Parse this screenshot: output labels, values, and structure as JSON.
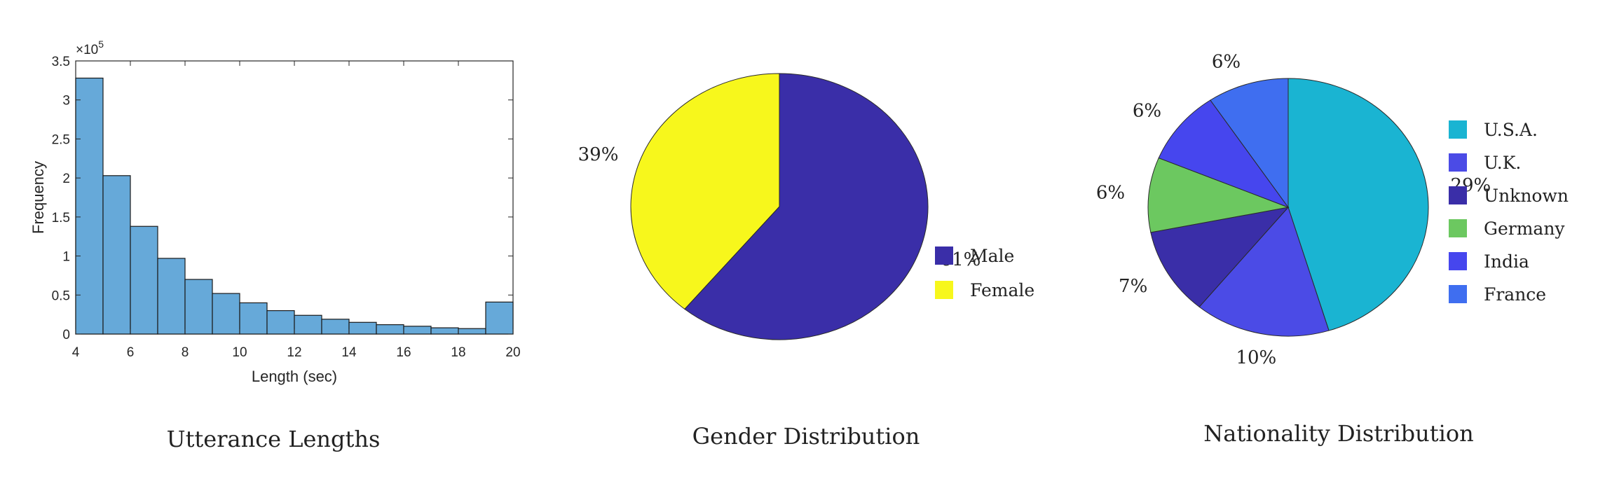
{
  "chart_data": [
    {
      "type": "bar",
      "caption": "Utterance Lengths",
      "xlabel": "Length (sec)",
      "ylabel": "Frequency",
      "yscale_note": "×10",
      "yscale_exp": "5",
      "xlim": [
        4,
        20
      ],
      "ylim": [
        0,
        3.5
      ],
      "xticks": [
        "4",
        "6",
        "8",
        "10",
        "12",
        "14",
        "16",
        "18",
        "20"
      ],
      "yticks": [
        "0",
        "0.5",
        "1",
        "1.5",
        "2",
        "2.5",
        "3",
        "3.5"
      ],
      "bin_width": 1,
      "bins": [
        4,
        5,
        6,
        7,
        8,
        9,
        10,
        11,
        12,
        13,
        14,
        15,
        16,
        17,
        18,
        19
      ],
      "values": [
        3.28,
        2.03,
        1.38,
        0.97,
        0.7,
        0.52,
        0.4,
        0.3,
        0.24,
        0.19,
        0.15,
        0.12,
        0.1,
        0.08,
        0.07,
        0.41
      ],
      "bar_color": "#66a9d9"
    },
    {
      "type": "pie",
      "caption": "Gender Distribution",
      "slices": [
        {
          "name": "Male",
          "value": 61,
          "label": "61%",
          "color": "#3a2ea8"
        },
        {
          "name": "Female",
          "value": 39,
          "label": "39%",
          "color": "#f7f71c"
        }
      ],
      "legend": [
        "Male",
        "Female"
      ]
    },
    {
      "type": "pie",
      "caption": "Nationality Distribution",
      "slices": [
        {
          "name": "U.S.A.",
          "value": 29,
          "label": "29%",
          "color": "#1ab4d2"
        },
        {
          "name": "U.K.",
          "value": 10,
          "label": "10%",
          "color": "#4b4be6"
        },
        {
          "name": "Unknown",
          "value": 7,
          "label": "7%",
          "color": "#3a2ea8"
        },
        {
          "name": "Germany",
          "value": 6,
          "label": "6%",
          "color": "#6cc860"
        },
        {
          "name": "India",
          "value": 6,
          "label": "6%",
          "color": "#4646ee"
        },
        {
          "name": "France",
          "value": 6,
          "label": "6%",
          "color": "#3f6ef0"
        }
      ],
      "legend": [
        "U.S.A.",
        "U.K.",
        "Unknown",
        "Germany",
        "India",
        "France"
      ]
    }
  ]
}
